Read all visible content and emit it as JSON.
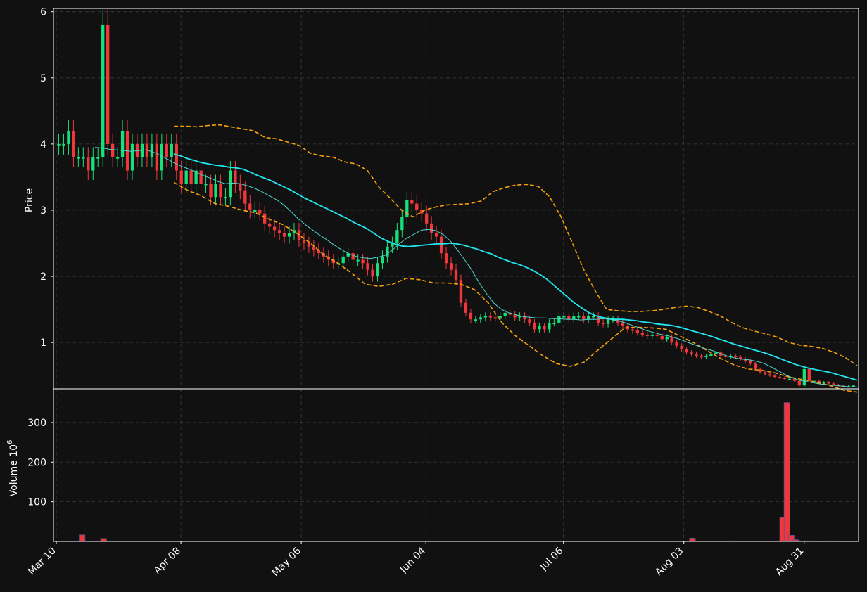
{
  "chart_data": [
    {
      "panel": "price",
      "type": "candlestick",
      "ylabel": "Price",
      "ylim": [
        0.3,
        6.05
      ],
      "yticks": [
        1,
        2,
        3,
        4,
        5,
        6
      ],
      "grid": true,
      "colors": {
        "up": "#16e07a",
        "down": "#f0383b",
        "ma_slow": "#1fe8f0",
        "ma_fast": "#4fd6cf",
        "bands": "#f5a20a",
        "background": "#111111",
        "frame": "#ffffff",
        "grid": "#3a3a3a"
      },
      "overlays": [
        "moving-average-slow",
        "moving-average-fast",
        "bollinger-upper",
        "bollinger-lower"
      ],
      "close_series": [
        4.0,
        4.0,
        4.2,
        3.8,
        3.8,
        3.8,
        3.6,
        3.8,
        3.8,
        5.8,
        4.0,
        3.8,
        3.8,
        4.2,
        3.6,
        4.0,
        3.8,
        4.0,
        3.8,
        4.0,
        3.6,
        4.0,
        3.8,
        4.0,
        3.6,
        3.4,
        3.6,
        3.4,
        3.6,
        3.4,
        3.4,
        3.2,
        3.4,
        3.2,
        3.2,
        3.6,
        3.4,
        3.3,
        3.1,
        3.0,
        3.0,
        2.95,
        2.8,
        2.75,
        2.7,
        2.65,
        2.6,
        2.65,
        2.7,
        2.55,
        2.5,
        2.45,
        2.4,
        2.35,
        2.3,
        2.25,
        2.2,
        2.2,
        2.3,
        2.35,
        2.25,
        2.25,
        2.2,
        2.1,
        2.0,
        2.2,
        2.3,
        2.45,
        2.5,
        2.7,
        2.9,
        3.15,
        3.1,
        3.0,
        2.95,
        2.8,
        2.65,
        2.6,
        2.35,
        2.2,
        2.1,
        1.95,
        1.6,
        1.45,
        1.35,
        1.35,
        1.38,
        1.4,
        1.38,
        1.36,
        1.4,
        1.45,
        1.42,
        1.38,
        1.4,
        1.35,
        1.3,
        1.2,
        1.25,
        1.2,
        1.3,
        1.3,
        1.4,
        1.4,
        1.35,
        1.4,
        1.4,
        1.35,
        1.4,
        1.4,
        1.3,
        1.28,
        1.35,
        1.35,
        1.3,
        1.25,
        1.2,
        1.18,
        1.15,
        1.12,
        1.1,
        1.12,
        1.1,
        1.05,
        1.08,
        1.0,
        0.95,
        0.9,
        0.85,
        0.82,
        0.8,
        0.78,
        0.8,
        0.82,
        0.85,
        0.8,
        0.78,
        0.8,
        0.78,
        0.75,
        0.72,
        0.68,
        0.6,
        0.55,
        0.52,
        0.5,
        0.48,
        0.47,
        0.45,
        0.45,
        0.42,
        0.35,
        0.6,
        0.42,
        0.42,
        0.4,
        0.4,
        0.38,
        0.36,
        0.35,
        0.34,
        0.34,
        0.35
      ],
      "ma_slow_series": [
        3.85,
        3.82,
        3.78,
        3.75,
        3.72,
        3.7,
        3.68,
        3.67,
        3.65,
        3.64,
        3.62,
        3.58,
        3.53,
        3.49,
        3.45,
        3.4,
        3.35,
        3.3,
        3.24,
        3.18,
        3.13,
        3.08,
        3.03,
        2.98,
        2.93,
        2.88,
        2.82,
        2.77,
        2.72,
        2.65,
        2.58,
        2.53,
        2.49,
        2.46,
        2.45,
        2.46,
        2.47,
        2.48,
        2.49,
        2.49,
        2.5,
        2.49,
        2.47,
        2.44,
        2.41,
        2.37,
        2.34,
        2.29,
        2.25,
        2.21,
        2.18,
        2.14,
        2.09,
        2.03,
        1.96,
        1.87,
        1.78,
        1.69,
        1.6,
        1.53,
        1.46,
        1.41,
        1.38,
        1.36,
        1.35,
        1.35,
        1.34,
        1.33,
        1.31,
        1.3,
        1.28,
        1.27,
        1.26,
        1.24,
        1.21,
        1.18,
        1.15,
        1.12,
        1.09,
        1.05,
        1.02,
        0.98,
        0.95,
        0.92,
        0.89,
        0.86,
        0.83,
        0.79,
        0.75,
        0.71,
        0.67,
        0.64,
        0.61,
        0.59,
        0.57,
        0.55,
        0.52,
        0.49,
        0.46,
        0.43
      ],
      "ma_fast_series": [
        3.95,
        3.94,
        3.92,
        3.91,
        3.9,
        3.89,
        3.9,
        3.91,
        3.88,
        3.83,
        3.77,
        3.71,
        3.66,
        3.62,
        3.57,
        3.52,
        3.48,
        3.43,
        3.4,
        3.41,
        3.4,
        3.37,
        3.33,
        3.28,
        3.22,
        3.16,
        3.08,
        2.98,
        2.87,
        2.78,
        2.7,
        2.62,
        2.55,
        2.47,
        2.4,
        2.34,
        2.3,
        2.28,
        2.27,
        2.29,
        2.32,
        2.4,
        2.5,
        2.58,
        2.64,
        2.7,
        2.71,
        2.69,
        2.63,
        2.53,
        2.39,
        2.24,
        2.08,
        1.89,
        1.73,
        1.59,
        1.5,
        1.45,
        1.42,
        1.39,
        1.38,
        1.37,
        1.37,
        1.36,
        1.36,
        1.35,
        1.35,
        1.34,
        1.35,
        1.35,
        1.36,
        1.35,
        1.33,
        1.3,
        1.26,
        1.22,
        1.18,
        1.15,
        1.12,
        1.1,
        1.07,
        1.03,
        0.99,
        0.95,
        0.91,
        0.88,
        0.84,
        0.8,
        0.77,
        0.75,
        0.74,
        0.72,
        0.69,
        0.64,
        0.58,
        0.52,
        0.47,
        0.43,
        0.41,
        0.39,
        0.37,
        0.36,
        0.35,
        0.34,
        0.33,
        0.33
      ],
      "bollinger_upper_series": [
        4.27,
        4.27,
        4.26,
        4.28,
        4.29,
        4.26,
        4.23,
        4.2,
        4.1,
        4.08,
        4.03,
        3.98,
        3.86,
        3.82,
        3.8,
        3.73,
        3.7,
        3.6,
        3.35,
        3.18,
        3.0,
        2.9,
        3.0,
        3.05,
        3.08,
        3.09,
        3.1,
        3.14,
        3.28,
        3.34,
        3.38,
        3.39,
        3.36,
        3.2,
        2.9,
        2.5,
        2.1,
        1.78,
        1.5,
        1.48,
        1.47,
        1.47,
        1.48,
        1.5,
        1.53,
        1.55,
        1.53,
        1.47,
        1.4,
        1.3,
        1.22,
        1.17,
        1.13,
        1.08,
        1.0,
        0.96,
        0.94,
        0.91,
        0.85,
        0.77,
        0.65
      ],
      "bollinger_lower_series": [
        3.42,
        3.3,
        3.22,
        3.1,
        3.06,
        3.0,
        2.96,
        2.86,
        2.78,
        2.65,
        2.5,
        2.32,
        2.2,
        2.05,
        1.88,
        1.85,
        1.88,
        1.97,
        1.95,
        1.9,
        1.9,
        1.88,
        1.8,
        1.6,
        1.3,
        1.1,
        0.95,
        0.8,
        0.68,
        0.64,
        0.7,
        0.88,
        1.05,
        1.22,
        1.23,
        1.22,
        1.2,
        1.1,
        1.0,
        0.88,
        0.76,
        0.66,
        0.6,
        0.58,
        0.54,
        0.48,
        0.44,
        0.4,
        0.35,
        0.28,
        0.25
      ]
    },
    {
      "panel": "volume",
      "type": "bar",
      "ylabel": "Volume  10",
      "ylabel_exponent": "6",
      "ylim": [
        0,
        385
      ],
      "yticks": [
        100,
        200,
        300
      ],
      "xticklabels": [
        "Mar 10",
        "Apr 08",
        "May 06",
        "Jun 04",
        "Jul 06",
        "Aug 03",
        "Aug 31"
      ],
      "bars": [
        {
          "date": "Mar 16",
          "value": 16
        },
        {
          "date": "Mar 21",
          "value": 7
        },
        {
          "date": "Aug 05",
          "value": 8
        },
        {
          "date": "Aug 14",
          "value": 1
        },
        {
          "date": "Aug 26",
          "value": 60
        },
        {
          "date": "Aug 27",
          "value": 350
        },
        {
          "date": "Aug 28",
          "value": 15
        },
        {
          "date": "Aug 29",
          "value": 4
        },
        {
          "date": "Aug 30",
          "value": 1
        },
        {
          "date": "Sep 01",
          "value": 1
        },
        {
          "date": "Sep 06",
          "value": 1
        }
      ]
    }
  ]
}
